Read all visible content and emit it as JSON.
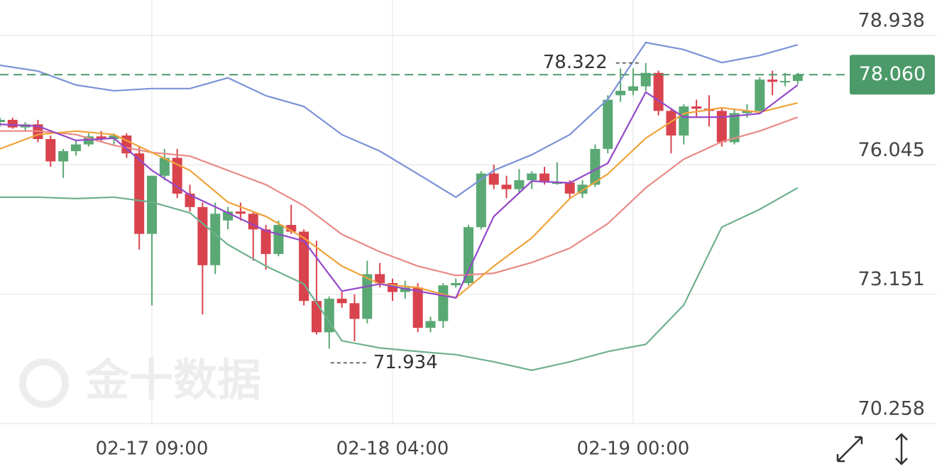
{
  "chart_data": {
    "type": "candlestick",
    "watermark": "金十数据",
    "categories": [
      null,
      null,
      null,
      null,
      null,
      null,
      null,
      null,
      null,
      null,
      null,
      null,
      "02-17 09:00",
      null,
      null,
      null,
      null,
      null,
      null,
      null,
      null,
      null,
      null,
      null,
      null,
      null,
      null,
      null,
      null,
      null,
      null,
      "02-18 04:00",
      null,
      null,
      null,
      null,
      null,
      null,
      null,
      null,
      null,
      null,
      null,
      null,
      null,
      null,
      null,
      null,
      null,
      null,
      "02-19 00:00",
      null,
      null,
      null,
      null,
      null,
      null,
      null,
      null,
      null,
      null,
      null,
      null,
      null
    ],
    "open": [
      77.0,
      77.05,
      76.88,
      76.95,
      76.62,
      76.12,
      76.35,
      76.5,
      76.68,
      76.62,
      76.7,
      76.3,
      74.5,
      75.8,
      76.2,
      75.4,
      75.1,
      73.8,
      74.8,
      75.0,
      74.95,
      74.6,
      74.05,
      74.7,
      74.55,
      73.0,
      72.3,
      73.05,
      72.95,
      72.6,
      73.6,
      73.4,
      73.2,
      73.3,
      72.4,
      72.55,
      73.35,
      73.4,
      74.65,
      75.85,
      75.6,
      75.5,
      75.7,
      75.85,
      75.65,
      75.65,
      75.4,
      75.6,
      76.4,
      77.6,
      77.7,
      77.8,
      78.1,
      77.25,
      76.7,
      77.35,
      77.3,
      77.25,
      76.55,
      77.2,
      77.25,
      77.95,
      77.9,
      77.92
    ],
    "high": [
      77.1,
      77.1,
      77.0,
      77.05,
      76.7,
      76.4,
      76.6,
      76.75,
      76.8,
      76.75,
      76.75,
      76.45,
      75.8,
      76.4,
      76.4,
      75.6,
      75.2,
      75.2,
      75.1,
      75.2,
      75.0,
      74.7,
      74.8,
      75.15,
      74.6,
      74.35,
      73.1,
      73.2,
      73.15,
      73.9,
      73.85,
      73.5,
      73.45,
      73.4,
      72.65,
      73.4,
      73.5,
      74.7,
      75.9,
      76.05,
      75.8,
      75.95,
      75.9,
      76.0,
      76.1,
      75.7,
      75.7,
      76.5,
      77.6,
      78.2,
      78.2,
      78.322,
      78.15,
      77.3,
      77.4,
      77.5,
      77.6,
      77.3,
      77.3,
      77.4,
      78.0,
      78.15,
      78.1,
      78.1
    ],
    "low": [
      76.9,
      76.85,
      76.8,
      76.55,
      76.0,
      75.75,
      76.25,
      76.45,
      76.55,
      76.5,
      76.2,
      74.15,
      72.9,
      75.7,
      75.3,
      75.0,
      72.7,
      73.6,
      74.6,
      74.8,
      73.9,
      73.7,
      74.0,
      74.5,
      72.9,
      72.25,
      71.934,
      72.85,
      72.1,
      72.5,
      73.3,
      73.0,
      73.05,
      72.3,
      72.3,
      72.4,
      73.3,
      73.35,
      74.6,
      75.5,
      75.3,
      75.4,
      75.5,
      75.6,
      75.6,
      75.3,
      75.3,
      75.55,
      76.3,
      77.45,
      77.6,
      77.7,
      77.15,
      76.3,
      76.5,
      77.1,
      76.9,
      76.45,
      76.5,
      77.1,
      77.2,
      77.6,
      77.8,
      77.85
    ],
    "close": [
      77.05,
      76.88,
      76.95,
      76.62,
      76.12,
      76.35,
      76.5,
      76.68,
      76.62,
      76.7,
      76.3,
      74.5,
      75.8,
      76.2,
      75.4,
      75.1,
      73.8,
      74.95,
      75.0,
      74.95,
      74.6,
      74.05,
      74.7,
      74.55,
      73.0,
      72.3,
      73.05,
      72.95,
      72.6,
      73.6,
      73.4,
      73.2,
      73.3,
      72.4,
      72.55,
      73.35,
      73.4,
      74.65,
      75.85,
      75.6,
      75.5,
      75.7,
      75.85,
      75.65,
      75.65,
      75.4,
      75.6,
      76.4,
      77.5,
      77.7,
      77.8,
      78.1,
      77.25,
      76.7,
      77.35,
      77.3,
      77.25,
      76.55,
      77.2,
      77.25,
      77.95,
      77.9,
      77.92,
      78.06
    ],
    "up_color": "#5aa874",
    "down_color": "#d9434d",
    "overlay_x": [
      0,
      3,
      6,
      9,
      12,
      15,
      18,
      21,
      24,
      27,
      30,
      33,
      36,
      39,
      42,
      45,
      48,
      51,
      54,
      57,
      60,
      63
    ],
    "overlays": [
      {
        "color": "#7b93d6",
        "values": [
          78.27,
          78.14,
          77.83,
          77.7,
          77.75,
          77.75,
          77.99,
          77.59,
          77.35,
          76.72,
          76.35,
          75.84,
          75.32,
          75.92,
          76.27,
          76.72,
          77.51,
          78.78,
          78.62,
          78.33,
          78.49,
          78.73
        ]
      },
      {
        "color": "#e88a86",
        "values": [
          76.8,
          76.8,
          76.72,
          76.48,
          76.32,
          76.24,
          75.92,
          75.6,
          75.13,
          74.49,
          74.1,
          73.78,
          73.57,
          73.62,
          73.86,
          74.18,
          74.73,
          75.53,
          76.17,
          76.56,
          76.8,
          77.11
        ]
      },
      {
        "color": "#6fb08f",
        "values": [
          75.32,
          75.32,
          75.29,
          75.32,
          75.21,
          74.97,
          74.26,
          73.78,
          73.38,
          72.11,
          71.95,
          71.87,
          71.8,
          71.64,
          71.45,
          71.64,
          71.87,
          72.03,
          72.91,
          74.65,
          75.05,
          75.53
        ]
      },
      {
        "color": "#f0a33c",
        "values": [
          76.4,
          76.72,
          76.8,
          76.72,
          76.32,
          75.92,
          75.21,
          74.89,
          74.41,
          73.78,
          73.38,
          73.3,
          73.07,
          73.78,
          74.41,
          75.29,
          75.84,
          76.64,
          77.19,
          77.32,
          77.22,
          77.43
        ]
      },
      {
        "color": "#9448c9",
        "values": [
          76.95,
          76.91,
          76.59,
          76.64,
          75.92,
          75.37,
          74.97,
          74.57,
          74.34,
          73.22,
          73.38,
          73.22,
          73.07,
          74.89,
          75.68,
          75.64,
          76.08,
          77.67,
          77.11,
          77.11,
          77.19,
          77.83
        ]
      }
    ],
    "high_label": 78.322,
    "low_label": 71.934,
    "current_price": {
      "value": 78.06,
      "label": "78.060"
    },
    "current_color": "#4c9a6a",
    "ylim": [
      70.258,
      79.73
    ],
    "yticks": [
      70.258,
      73.151,
      76.045,
      78.938
    ],
    "grid": true
  }
}
